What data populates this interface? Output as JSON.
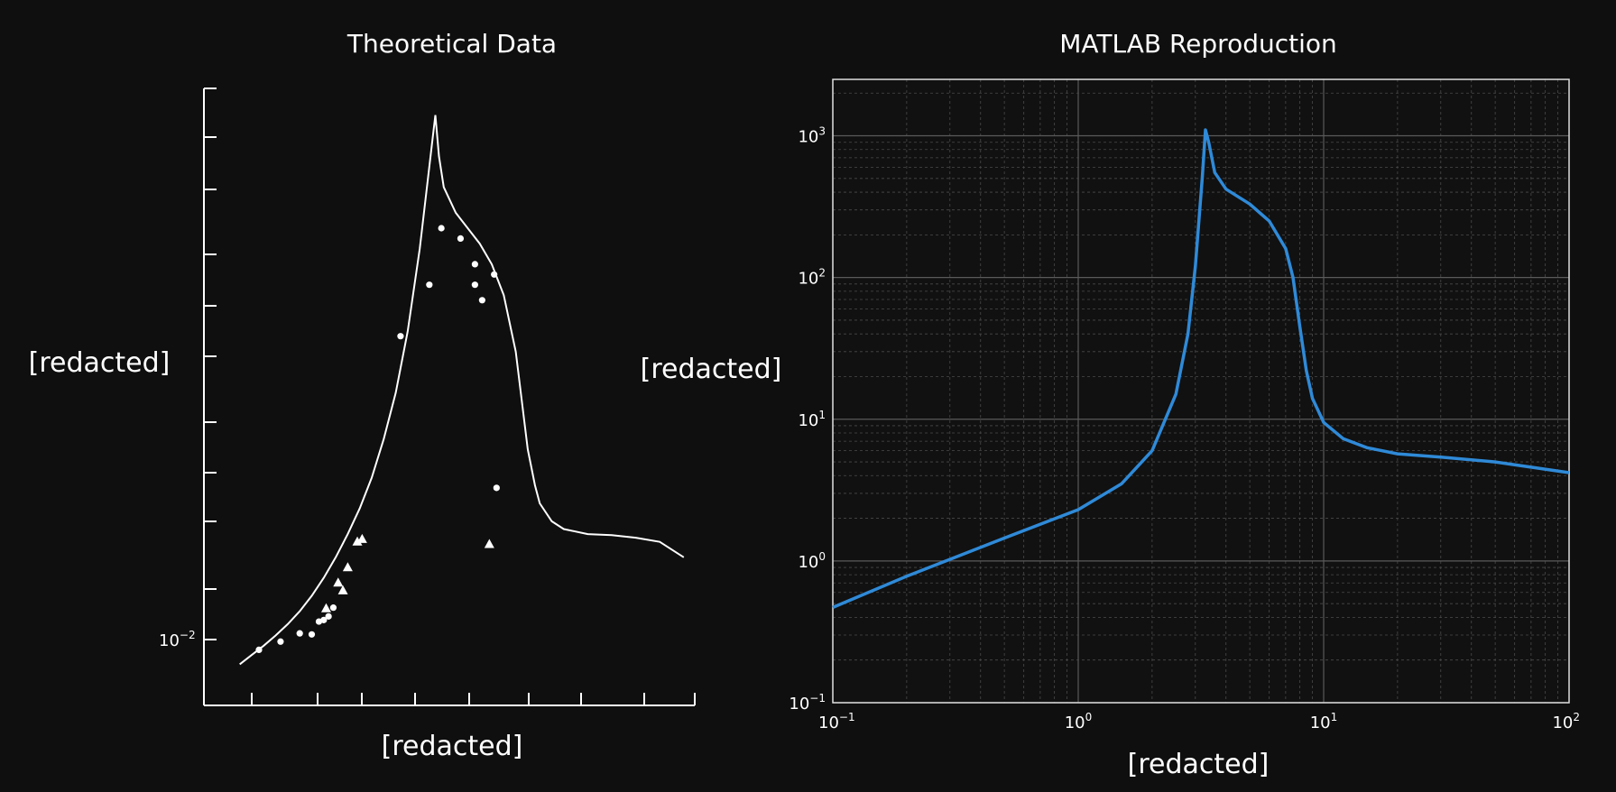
{
  "chart_data": [
    {
      "type": "line",
      "title": "Theoretical Data",
      "xlabel": "[redacted]",
      "ylabel": "[redacted]",
      "ytick_label": "10",
      "ytick_exp": "−2",
      "colors": {
        "curve": "#ffffff",
        "axes": "#ffffff"
      },
      "series": [
        {
          "x": [
            -0.5,
            0.0,
            0.5,
            1.0,
            1.5,
            2.0,
            2.5,
            3.0,
            3.5,
            4.0,
            4.5,
            5.0,
            5.5,
            6.0,
            6.5,
            7.0,
            7.5,
            7.65,
            7.8,
            8.0,
            8.5,
            9.0,
            9.5,
            10.0,
            10.5,
            11.0,
            11.5,
            11.8,
            12.0,
            12.5,
            13.0,
            14.0,
            15.0,
            16.0,
            17.0,
            18.0
          ],
          "y": [
            -0.48,
            -0.3,
            -0.12,
            0.08,
            0.3,
            0.55,
            0.85,
            1.2,
            1.6,
            2.05,
            2.55,
            3.15,
            3.9,
            4.8,
            6.0,
            7.6,
            9.6,
            10.2,
            9.4,
            8.8,
            8.3,
            8.0,
            7.7,
            7.3,
            6.7,
            5.6,
            3.7,
            3.0,
            2.65,
            2.3,
            2.15,
            2.05,
            2.03,
            1.98,
            1.9,
            1.6
          ]
        }
      ],
      "markers_circle": {
        "x": [
          0.3,
          1.2,
          2.0,
          2.5,
          2.8,
          3.0,
          3.2,
          3.4,
          6.2,
          7.4,
          7.9,
          8.7,
          9.3,
          9.3,
          9.6,
          10.1,
          10.2
        ],
        "y": [
          -0.2,
          -0.04,
          0.12,
          0.1,
          0.35,
          0.38,
          0.45,
          0.62,
          5.9,
          6.9,
          8.0,
          7.8,
          7.3,
          6.9,
          6.6,
          7.1,
          2.95
        ]
      },
      "markers_triangle": {
        "x": [
          3.1,
          3.6,
          3.8,
          4.0,
          4.4,
          4.6,
          9.9
        ],
        "y": [
          0.6,
          1.1,
          0.95,
          1.4,
          1.9,
          1.95,
          1.85
        ]
      }
    },
    {
      "type": "line",
      "title": "MATLAB Reproduction",
      "xlabel": "[redacted]",
      "ylabel": "[redacted]",
      "xscale": "log",
      "yscale": "log",
      "xlim": [
        0.1,
        100
      ],
      "ylim": [
        0.1,
        2500
      ],
      "grid": true,
      "xticks": [
        {
          "base": "10",
          "exp": "−1"
        },
        {
          "base": "10",
          "exp": "0"
        },
        {
          "base": "10",
          "exp": "1"
        },
        {
          "base": "10",
          "exp": "2"
        }
      ],
      "yticks": [
        {
          "base": "10",
          "exp": "−1"
        },
        {
          "base": "10",
          "exp": "0"
        },
        {
          "base": "10",
          "exp": "1"
        },
        {
          "base": "10",
          "exp": "2"
        },
        {
          "base": "10",
          "exp": "3"
        }
      ],
      "colors": {
        "curve": "#2f8ad8",
        "grid": "#4a4a4a",
        "axes": "#dddddd"
      },
      "series": [
        {
          "x": [
            0.1,
            0.2,
            0.5,
            1.0,
            1.5,
            2.0,
            2.5,
            2.8,
            3.0,
            3.2,
            3.3,
            3.4,
            3.6,
            4.0,
            5.0,
            6.0,
            7.0,
            7.5,
            8.0,
            8.5,
            9.0,
            10.0,
            12.0,
            15.0,
            20.0,
            30.0,
            50.0,
            100.0
          ],
          "y": [
            0.47,
            0.78,
            1.45,
            2.3,
            3.5,
            6.0,
            15.0,
            40.0,
            120.0,
            500.0,
            1100.0,
            900.0,
            550.0,
            420.0,
            330.0,
            250.0,
            160.0,
            100.0,
            45.0,
            22.0,
            14.0,
            9.5,
            7.3,
            6.3,
            5.7,
            5.4,
            5.0,
            4.2
          ]
        }
      ]
    }
  ]
}
